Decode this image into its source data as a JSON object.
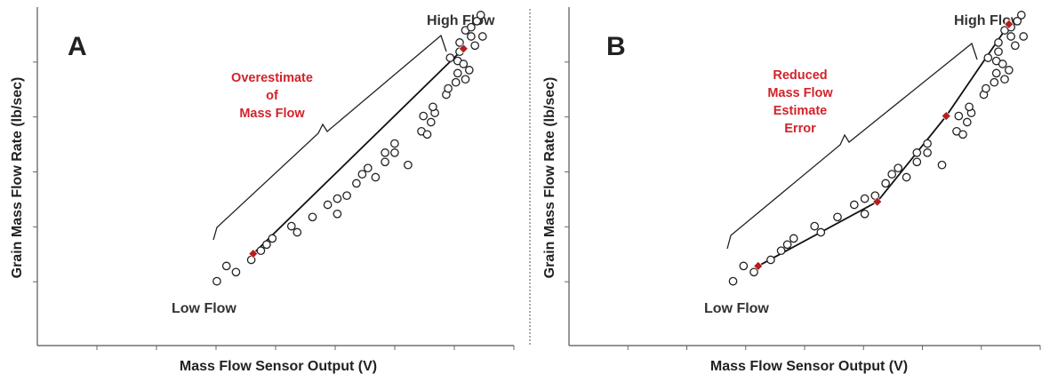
{
  "colors": {
    "annotation": "#d2232a",
    "key_point": "#b41e1e",
    "points": "#222222",
    "fit_line": "#111111"
  },
  "chart_data": [
    {
      "panel": "A",
      "type": "scatter",
      "xlabel": "Mass Flow Sensor Output (V)",
      "ylabel": "Grain Mass Flow Rate (lb/sec)",
      "xlim": [
        0,
        20
      ],
      "ylim": [
        0,
        11
      ],
      "x_ticks": 8,
      "y_ticks": 5,
      "grid": false,
      "labels": {
        "low": "Low Flow",
        "high": "High Flow"
      },
      "annotation": [
        "Overestimate",
        "of",
        "Mass Flow"
      ],
      "points": [
        [
          5.3,
          2.1
        ],
        [
          5.8,
          2.6
        ],
        [
          6.3,
          2.4
        ],
        [
          7.1,
          2.8
        ],
        [
          7.6,
          3.1
        ],
        [
          7.9,
          3.3
        ],
        [
          8.2,
          3.5
        ],
        [
          9.2,
          3.9
        ],
        [
          9.5,
          3.7
        ],
        [
          10.3,
          4.2
        ],
        [
          11.1,
          4.6
        ],
        [
          11.6,
          4.3
        ],
        [
          11.6,
          4.8
        ],
        [
          12.1,
          4.9
        ],
        [
          12.6,
          5.3
        ],
        [
          12.9,
          5.6
        ],
        [
          13.2,
          5.8
        ],
        [
          13.6,
          5.5
        ],
        [
          14.1,
          6.3
        ],
        [
          14.1,
          6.0
        ],
        [
          14.6,
          6.6
        ],
        [
          14.6,
          6.3
        ],
        [
          15.3,
          5.9
        ],
        [
          16.0,
          7.0
        ],
        [
          16.1,
          7.5
        ],
        [
          16.3,
          6.9
        ],
        [
          16.5,
          7.3
        ],
        [
          16.7,
          7.6
        ],
        [
          16.6,
          7.8
        ],
        [
          17.3,
          8.2
        ],
        [
          17.4,
          8.4
        ],
        [
          17.5,
          9.4
        ],
        [
          17.8,
          8.6
        ],
        [
          17.9,
          8.9
        ],
        [
          18.0,
          9.6
        ],
        [
          18.0,
          9.9
        ],
        [
          17.9,
          9.3
        ],
        [
          18.2,
          9.2
        ],
        [
          18.3,
          10.3
        ],
        [
          18.6,
          10.4
        ],
        [
          18.3,
          8.7
        ],
        [
          18.5,
          9.0
        ],
        [
          18.6,
          10.1
        ],
        [
          18.8,
          9.8
        ],
        [
          18.9,
          10.6
        ],
        [
          19.1,
          10.8
        ],
        [
          19.2,
          10.1
        ]
      ],
      "key_points": [
        [
          7.2,
          3.0
        ],
        [
          18.2,
          9.7
        ]
      ]
    },
    {
      "panel": "B",
      "type": "scatter",
      "xlabel": "Mass Flow Sensor Output (V)",
      "ylabel": "Grain Mass Flow Rate (lb/sec)",
      "xlim": [
        0,
        20
      ],
      "ylim": [
        0,
        11
      ],
      "x_ticks": 8,
      "y_ticks": 5,
      "grid": false,
      "labels": {
        "low": "Low Flow",
        "high": "High Flow"
      },
      "annotation": [
        "Reduced",
        "Mass Flow",
        "Estimate",
        "Error"
      ],
      "points": [
        [
          5.3,
          2.1
        ],
        [
          5.8,
          2.6
        ],
        [
          6.3,
          2.4
        ],
        [
          7.1,
          2.8
        ],
        [
          7.6,
          3.1
        ],
        [
          7.9,
          3.3
        ],
        [
          8.2,
          3.5
        ],
        [
          9.2,
          3.9
        ],
        [
          9.5,
          3.7
        ],
        [
          10.3,
          4.2
        ],
        [
          11.1,
          4.6
        ],
        [
          11.6,
          4.3
        ],
        [
          11.6,
          4.8
        ],
        [
          12.1,
          4.9
        ],
        [
          12.6,
          5.3
        ],
        [
          12.9,
          5.6
        ],
        [
          13.2,
          5.8
        ],
        [
          13.6,
          5.5
        ],
        [
          14.1,
          6.3
        ],
        [
          14.1,
          6.0
        ],
        [
          14.6,
          6.6
        ],
        [
          14.6,
          6.3
        ],
        [
          15.3,
          5.9
        ],
        [
          16.0,
          7.0
        ],
        [
          16.1,
          7.5
        ],
        [
          16.3,
          6.9
        ],
        [
          16.5,
          7.3
        ],
        [
          16.7,
          7.6
        ],
        [
          16.6,
          7.8
        ],
        [
          17.3,
          8.2
        ],
        [
          17.4,
          8.4
        ],
        [
          17.5,
          9.4
        ],
        [
          17.8,
          8.6
        ],
        [
          17.9,
          8.9
        ],
        [
          18.0,
          9.6
        ],
        [
          18.0,
          9.9
        ],
        [
          17.9,
          9.3
        ],
        [
          18.2,
          9.2
        ],
        [
          18.3,
          10.3
        ],
        [
          18.6,
          10.4
        ],
        [
          18.3,
          8.7
        ],
        [
          18.5,
          9.0
        ],
        [
          18.6,
          10.1
        ],
        [
          18.8,
          9.8
        ],
        [
          18.9,
          10.6
        ],
        [
          19.1,
          10.8
        ],
        [
          19.2,
          10.1
        ]
      ],
      "key_points": [
        [
          6.5,
          2.6
        ],
        [
          12.2,
          4.7
        ],
        [
          15.5,
          7.5
        ],
        [
          18.5,
          10.5
        ]
      ]
    }
  ]
}
